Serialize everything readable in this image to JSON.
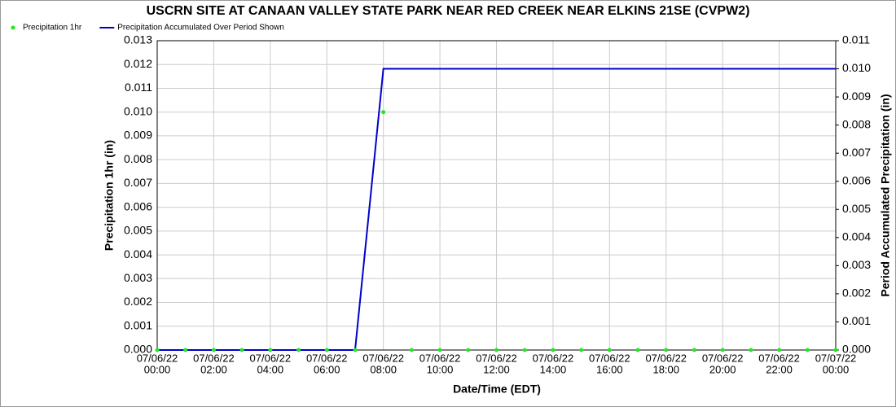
{
  "chart_data": {
    "type": "line",
    "title": "USCRN SITE AT CANAAN VALLEY STATE PARK NEAR RED CREEK NEAR ELKINS 21SE (CVPW2)",
    "x_label": "Date/Time (EDT)",
    "y_label": "Precipitation 1hr (in)",
    "y2_label": "Period Accumulated Precipitation (in)",
    "x": [
      "07/06/22 00:00",
      "07/06/22 01:00",
      "07/06/22 02:00",
      "07/06/22 03:00",
      "07/06/22 04:00",
      "07/06/22 05:00",
      "07/06/22 06:00",
      "07/06/22 07:00",
      "07/06/22 08:00",
      "07/06/22 09:00",
      "07/06/22 10:00",
      "07/06/22 11:00",
      "07/06/22 12:00",
      "07/06/22 13:00",
      "07/06/22 14:00",
      "07/06/22 15:00",
      "07/06/22 16:00",
      "07/06/22 17:00",
      "07/06/22 18:00",
      "07/06/22 19:00",
      "07/06/22 20:00",
      "07/06/22 21:00",
      "07/06/22 22:00",
      "07/06/22 23:00",
      "07/07/22 00:00"
    ],
    "series": [
      {
        "name": "Precipitation 1hr",
        "type": "scatter",
        "color": "#22e822",
        "values": [
          0,
          0,
          0,
          0,
          0,
          0,
          0,
          0,
          0.01,
          0,
          0,
          0,
          0,
          0,
          0,
          0,
          0,
          0,
          0,
          0,
          0,
          0,
          0,
          0,
          0
        ]
      },
      {
        "name": "Precipitation Accumulated Over Period Shown",
        "type": "line",
        "axis": "y2",
        "color": "#0000cc",
        "values": [
          0,
          0,
          0,
          0,
          0,
          0,
          0,
          0,
          0.01,
          0.01,
          0.01,
          0.01,
          0.01,
          0.01,
          0.01,
          0.01,
          0.01,
          0.01,
          0.01,
          0.01,
          0.01,
          0.01,
          0.01,
          0.01,
          0.01
        ]
      }
    ],
    "xlim": [
      "07/06/22 00:00",
      "07/07/22 00:00"
    ],
    "xticks": [
      {
        "value": "07/06/22 00:00",
        "label": [
          "07/06/22",
          "00:00"
        ]
      },
      {
        "value": "07/06/22 02:00",
        "label": [
          "07/06/22",
          "02:00"
        ]
      },
      {
        "value": "07/06/22 04:00",
        "label": [
          "07/06/22",
          "04:00"
        ]
      },
      {
        "value": "07/06/22 06:00",
        "label": [
          "07/06/22",
          "06:00"
        ]
      },
      {
        "value": "07/06/22 08:00",
        "label": [
          "07/06/22",
          "08:00"
        ]
      },
      {
        "value": "07/06/22 10:00",
        "label": [
          "07/06/22",
          "10:00"
        ]
      },
      {
        "value": "07/06/22 12:00",
        "label": [
          "07/06/22",
          "12:00"
        ]
      },
      {
        "value": "07/06/22 14:00",
        "label": [
          "07/06/22",
          "14:00"
        ]
      },
      {
        "value": "07/06/22 16:00",
        "label": [
          "07/06/22",
          "16:00"
        ]
      },
      {
        "value": "07/06/22 18:00",
        "label": [
          "07/06/22",
          "18:00"
        ]
      },
      {
        "value": "07/06/22 20:00",
        "label": [
          "07/06/22",
          "20:00"
        ]
      },
      {
        "value": "07/06/22 22:00",
        "label": [
          "07/06/22",
          "22:00"
        ]
      },
      {
        "value": "07/07/22 00:00",
        "label": [
          "07/07/22",
          "00:00"
        ]
      }
    ],
    "ylim": [
      0,
      0.013
    ],
    "yticks": [
      {
        "value": 0,
        "label": "0.000"
      },
      {
        "value": 0.001,
        "label": "0.001"
      },
      {
        "value": 0.002,
        "label": "0.002"
      },
      {
        "value": 0.003,
        "label": "0.003"
      },
      {
        "value": 0.004,
        "label": "0.004"
      },
      {
        "value": 0.005,
        "label": "0.005"
      },
      {
        "value": 0.006,
        "label": "0.006"
      },
      {
        "value": 0.007,
        "label": "0.007"
      },
      {
        "value": 0.008,
        "label": "0.008"
      },
      {
        "value": 0.009,
        "label": "0.009"
      },
      {
        "value": 0.01,
        "label": "0.010"
      },
      {
        "value": 0.011,
        "label": "0.011"
      },
      {
        "value": 0.012,
        "label": "0.012"
      },
      {
        "value": 0.013,
        "label": "0.013"
      }
    ],
    "y2lim": [
      0,
      0.011
    ],
    "y2ticks": [
      {
        "value": 0,
        "label": "0.000"
      },
      {
        "value": 0.001,
        "label": "0.001"
      },
      {
        "value": 0.002,
        "label": "0.002"
      },
      {
        "value": 0.003,
        "label": "0.003"
      },
      {
        "value": 0.004,
        "label": "0.004"
      },
      {
        "value": 0.005,
        "label": "0.005"
      },
      {
        "value": 0.006,
        "label": "0.006"
      },
      {
        "value": 0.007,
        "label": "0.007"
      },
      {
        "value": 0.008,
        "label": "0.008"
      },
      {
        "value": 0.009,
        "label": "0.009"
      },
      {
        "value": 0.01,
        "label": "0.010"
      },
      {
        "value": 0.011,
        "label": "0.011"
      }
    ],
    "grid": true,
    "legend": "top-left"
  }
}
